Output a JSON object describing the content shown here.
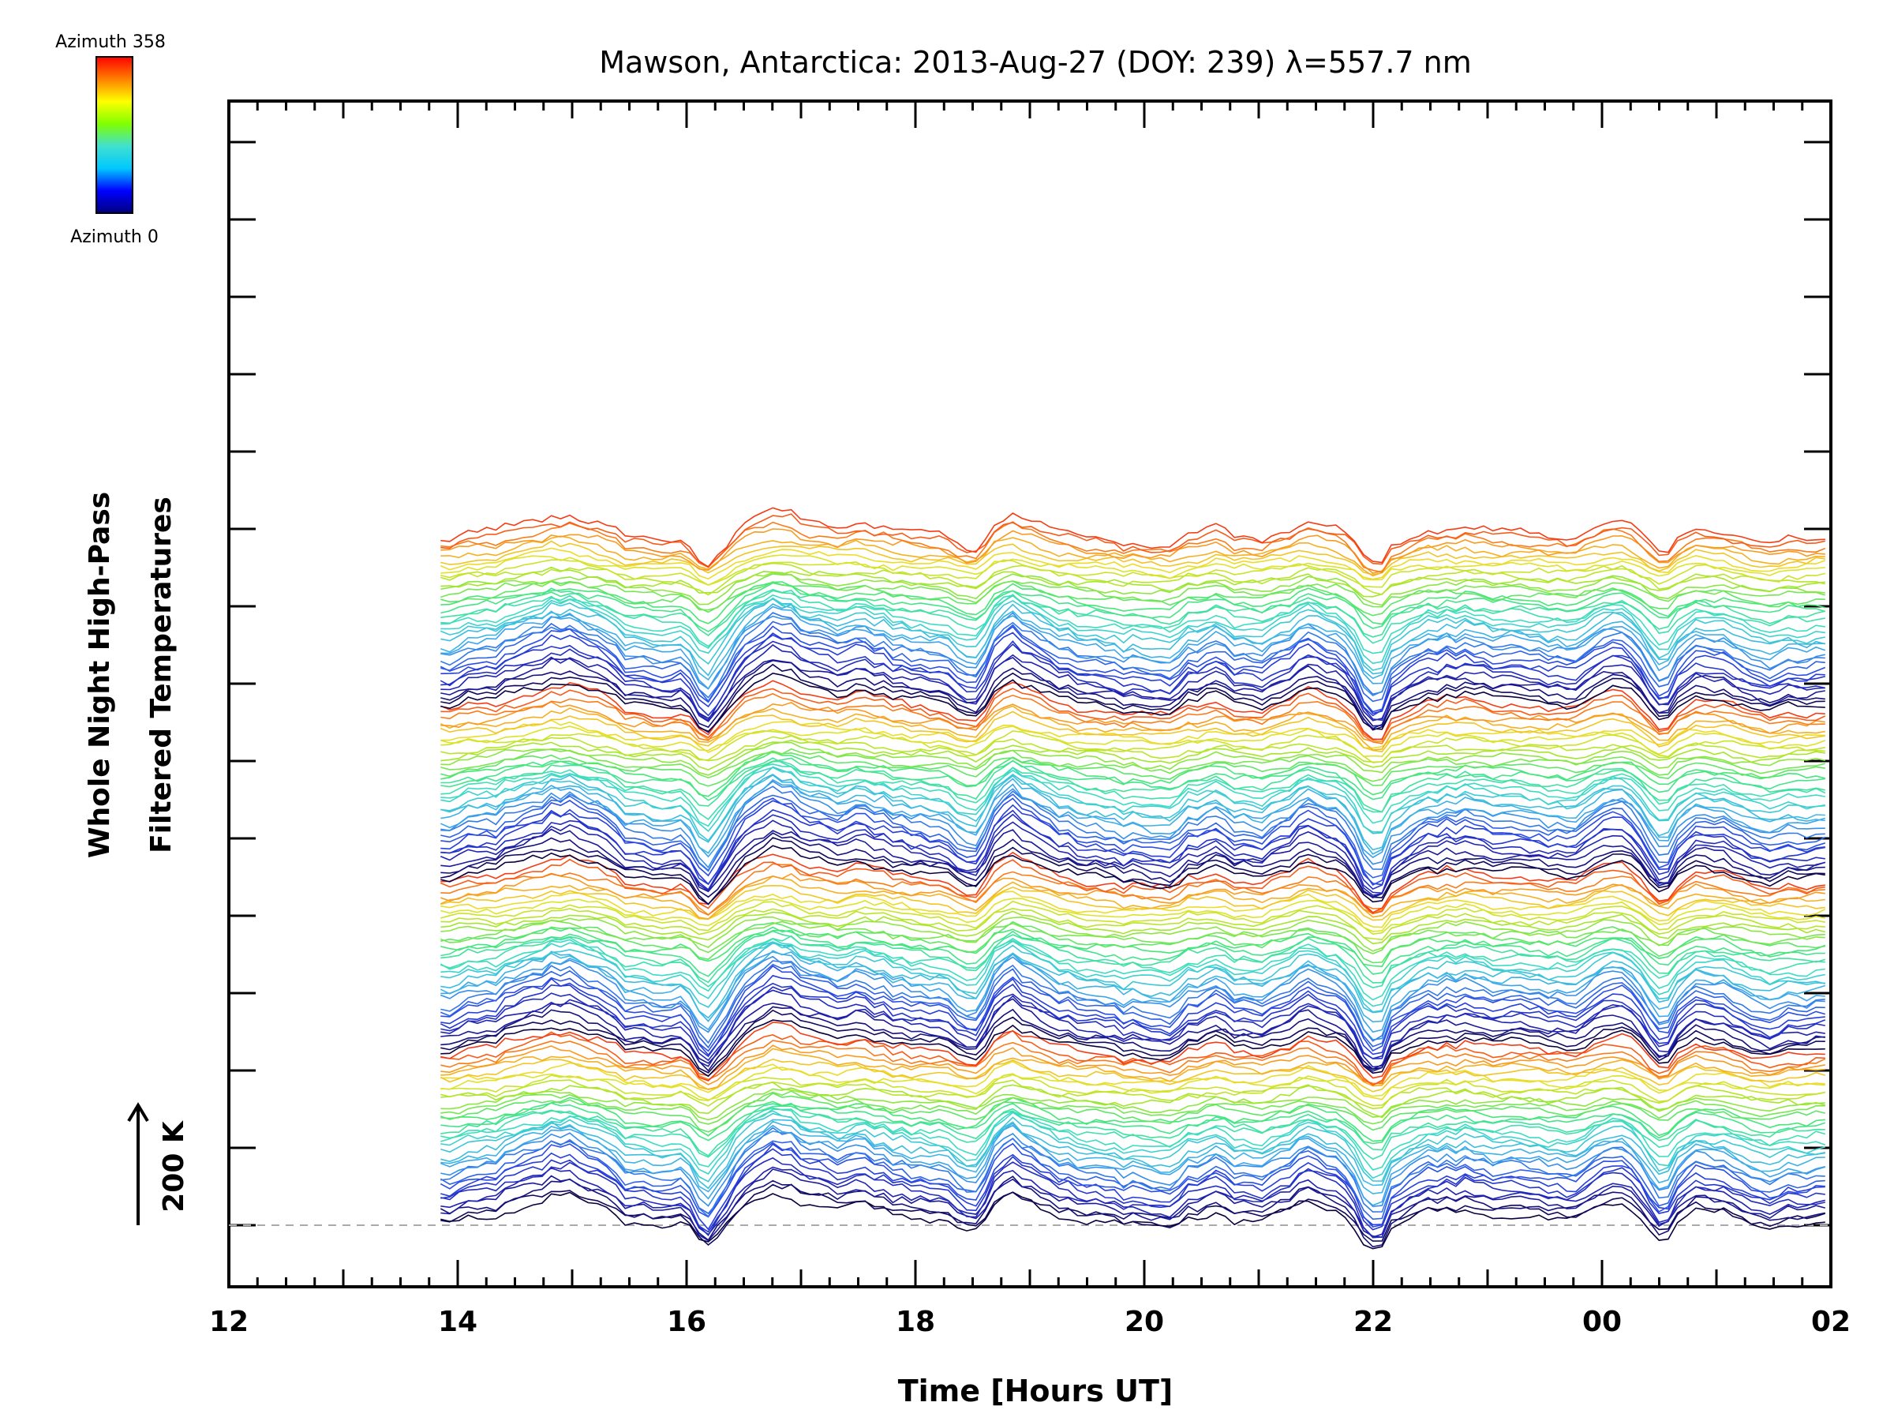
{
  "chart_data": {
    "type": "line",
    "title": "Mawson, Antarctica: 2013-Aug-27 (DOY: 239) λ=557.7 nm",
    "xlabel": "Time [Hours UT]",
    "ylabel_line1": "Whole Night High-Pass",
    "ylabel_line2": "Filtered Temperatures",
    "scale_bar_label": "200 K",
    "x_range_hours": [
      12,
      26
    ],
    "x_tick_labels": [
      "12",
      "14",
      "16",
      "18",
      "20",
      "22",
      "00",
      "02"
    ],
    "data_start_hour": 13.85,
    "data_end_hour": 25.95,
    "azimuth_range": [
      0,
      358
    ],
    "n_traces": 144,
    "baseline_dashed": true,
    "key_dip_times_hours": [
      16.2,
      18.5,
      22.0,
      24.5
    ],
    "key_peak_times_hours": [
      15.0,
      16.8,
      17.6,
      18.8,
      21.5,
      24.1
    ],
    "colorbar": {
      "top_label": "Azimuth  358",
      "bottom_label": "Azimuth  0",
      "colors": [
        "#000080",
        "#0000ff",
        "#00c8ff",
        "#40e0d0",
        "#80ff00",
        "#ffff00",
        "#ff8000",
        "#ff0000"
      ]
    }
  }
}
